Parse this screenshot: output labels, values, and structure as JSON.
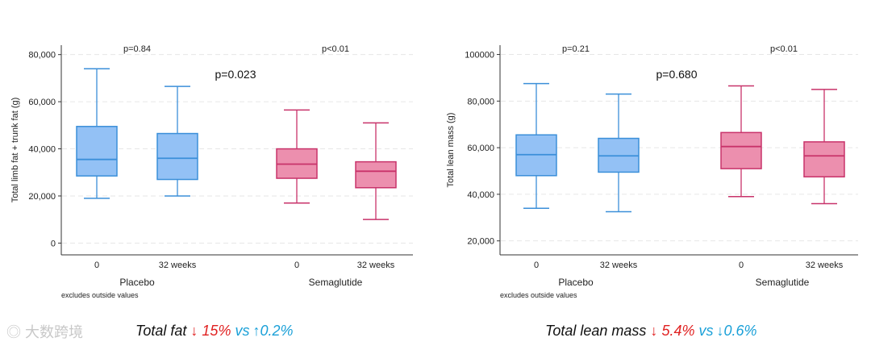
{
  "colors": {
    "placebo_fill": "#93c1f5",
    "placebo_line": "#3b8fd9",
    "sema_fill": "#ec8fae",
    "sema_line": "#c8336a",
    "red": "#e02020",
    "blue": "#1aa0d8"
  },
  "chart_data": [
    {
      "type": "box",
      "ylabel": "Total limb fat + trunk fat (g)",
      "ylim": [
        -5000,
        84000
      ],
      "yticks": [
        0,
        20000,
        40000,
        60000,
        80000
      ],
      "ytick_labels": [
        "0",
        "20,000",
        "40,000",
        "60,000",
        "80,000"
      ],
      "note": "excludes outside values",
      "groups": [
        {
          "name": "Placebo",
          "p_label": "p=0.84"
        },
        {
          "name": "Semaglutide",
          "p_label": "p<0.01"
        }
      ],
      "between_groups_p": "p=0.023",
      "boxes": [
        {
          "group": "Placebo",
          "label": "0",
          "min": 19000,
          "q1": 28500,
          "median": 35500,
          "q3": 49500,
          "max": 74000
        },
        {
          "group": "Placebo",
          "label": "32 weeks",
          "min": 20000,
          "q1": 27000,
          "median": 36000,
          "q3": 46500,
          "max": 66500
        },
        {
          "group": "Semaglutide",
          "label": "0",
          "min": 17000,
          "q1": 27500,
          "median": 33500,
          "q3": 40000,
          "max": 56500
        },
        {
          "group": "Semaglutide",
          "label": "32 weeks",
          "min": 10000,
          "q1": 23500,
          "median": 30500,
          "q3": 34500,
          "max": 51000
        }
      ]
    },
    {
      "type": "box",
      "ylabel": "Total lean mass (g)",
      "ylim": [
        14000,
        104000
      ],
      "yticks": [
        20000,
        40000,
        60000,
        80000,
        100000
      ],
      "ytick_labels": [
        "20,000",
        "40,000",
        "60,000",
        "80,000",
        "100000"
      ],
      "note": "excludes outside values",
      "groups": [
        {
          "name": "Placebo",
          "p_label": "p=0.21"
        },
        {
          "name": "Semaglutide",
          "p_label": "p<0.01"
        }
      ],
      "between_groups_p": "p=0.680",
      "boxes": [
        {
          "group": "Placebo",
          "label": "0",
          "min": 34000,
          "q1": 48000,
          "median": 57000,
          "q3": 65500,
          "max": 87500
        },
        {
          "group": "Placebo",
          "label": "32 weeks",
          "min": 32500,
          "q1": 49500,
          "median": 56500,
          "q3": 64000,
          "max": 83000
        },
        {
          "group": "Semaglutide",
          "label": "0",
          "min": 39000,
          "q1": 51000,
          "median": 60500,
          "q3": 66500,
          "max": 86500
        },
        {
          "group": "Semaglutide",
          "label": "32 weeks",
          "min": 36000,
          "q1": 47500,
          "median": 56500,
          "q3": 62500,
          "max": 85000
        }
      ]
    }
  ],
  "summaries": [
    {
      "metric": "Total fat",
      "arrow1": "↓",
      "sema_change": "15%",
      "vs": "vs",
      "arrow2": "↑",
      "placebo_change": "0.2%"
    },
    {
      "metric": "Total lean mass",
      "arrow1": "↓",
      "sema_change": "5.4%",
      "vs": "vs",
      "arrow2": "↓",
      "placebo_change": "0.6%"
    }
  ],
  "watermark": "大数跨境"
}
